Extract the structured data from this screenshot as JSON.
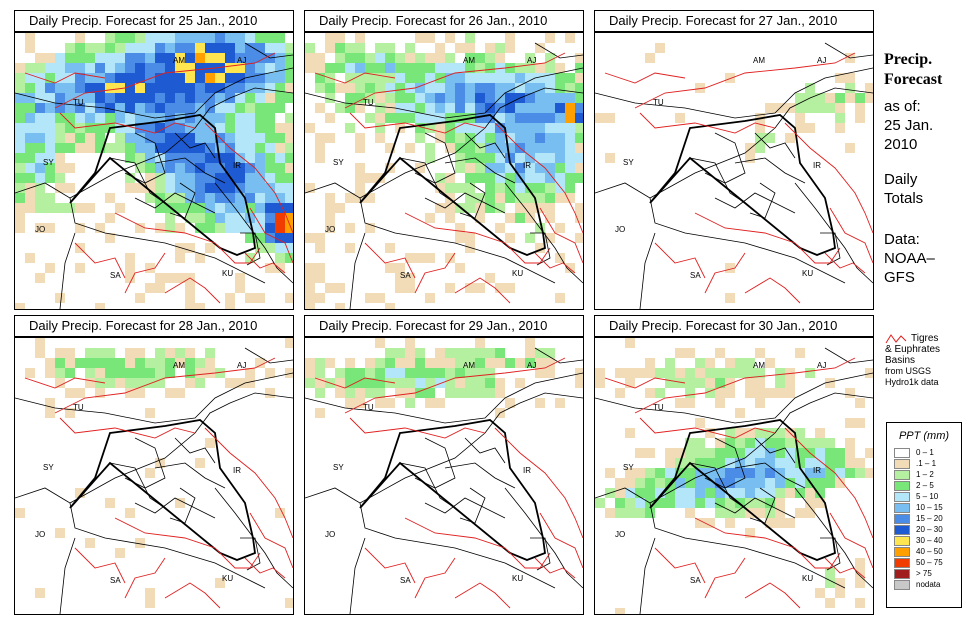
{
  "panels": [
    {
      "title": "Daily Precip. Forecast for  25 Jan., 2010"
    },
    {
      "title": "Daily Precip. Forecast for  26 Jan., 2010"
    },
    {
      "title": "Daily Precip. Forecast for  27 Jan., 2010"
    },
    {
      "title": "Daily Precip. Forecast for  28 Jan., 2010"
    },
    {
      "title": "Daily Precip. Forecast for  29 Jan., 2010"
    },
    {
      "title": "Daily Precip. Forecast for  30 Jan., 2010"
    }
  ],
  "country_labels": [
    "AM",
    "AJ",
    "TU",
    "SY",
    "IR",
    "JO",
    "SA",
    "KU"
  ],
  "sidebar": {
    "title_line1": "Precip.",
    "title_line2": "Forecast",
    "asof_line1": "as of:",
    "asof_line2": "25 Jan.",
    "asof_line3": "2010",
    "daily_line1": "Daily",
    "daily_line2": "Totals",
    "data_line1": "Data:",
    "data_line2": "NOAA–",
    "data_line3": "GFS"
  },
  "basin_legend": {
    "line1": "Tigres",
    "line2": "& Euphrates",
    "line3": "Basins",
    "line4": "from USGS",
    "line5": "Hydro1k data",
    "color": "#e02020"
  },
  "precip_legend": {
    "title": "PPT (mm)",
    "items": [
      {
        "label": "0 – 1",
        "color": "#ffffff"
      },
      {
        "label": ".1 – 1",
        "color": "#f2dcb8"
      },
      {
        "label": "1 – 2",
        "color": "#b4f0a0"
      },
      {
        "label": "2 – 5",
        "color": "#78e678"
      },
      {
        "label": "5 – 10",
        "color": "#b4e6fa"
      },
      {
        "label": "10 – 15",
        "color": "#78bef0"
      },
      {
        "label": "15 – 20",
        "color": "#4a8ce6"
      },
      {
        "label": "20 – 30",
        "color": "#1e5ad2"
      },
      {
        "label": "30 – 40",
        "color": "#ffe650"
      },
      {
        "label": "40 – 50",
        "color": "#ffa000"
      },
      {
        "label": "50 – 75",
        "color": "#f03c00"
      },
      {
        "label": "> 75",
        "color": "#a01e1e"
      },
      {
        "label": "nodata",
        "color": "#c8c8c8"
      }
    ]
  }
}
